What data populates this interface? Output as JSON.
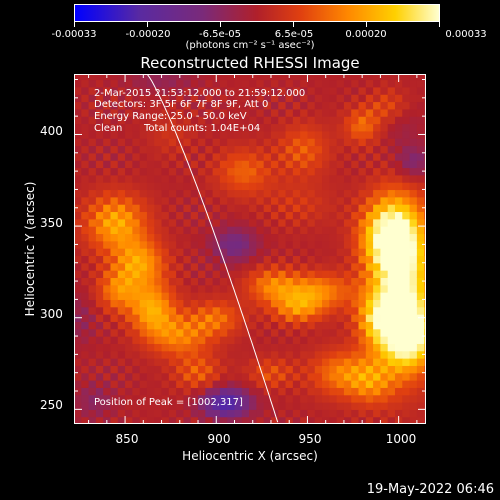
{
  "colorbar": {
    "labels": [
      "-0.00033",
      "-0.00020",
      "-6.5e-05",
      "6.5e-05",
      "0.00020",
      "0.00033"
    ],
    "unit_text": "(photons cm⁻² s⁻¹ asec⁻²)"
  },
  "chart_data": {
    "type": "heatmap",
    "title": "Reconstructed RHESSI Image",
    "xlabel": "Heliocentric X (arcsec)",
    "ylabel": "Heliocentric Y (arcsec)",
    "xlim": [
      822,
      1015
    ],
    "ylim": [
      242,
      433
    ],
    "xticks": [
      "850",
      "900",
      "950",
      "1000"
    ],
    "yticks": [
      "250",
      "300",
      "350",
      "400"
    ],
    "xtick_values": [
      850,
      900,
      950,
      1000
    ],
    "ytick_values": [
      250,
      300,
      350,
      400
    ],
    "zlim": [
      -0.00033,
      0.00033
    ],
    "colormap": [
      "#0000ff",
      "#5a2aa0",
      "#7a2a7a",
      "#b0202a",
      "#e04010",
      "#ff8800",
      "#ffd000",
      "#ffffd0"
    ],
    "annotations": [
      "2-Mar-2015 21:53:12.000 to 21:59:12.000",
      "Detectors: 3F 5F 6F 7F 8F 9F, Att 0",
      "Energy Range: 25.0 - 50.0 keV",
      "Clean",
      "Total counts: 1.04E+04",
      "Position of Peak = [1002,317]"
    ],
    "peak": [
      1002,
      317
    ]
  },
  "footer": {
    "date": "19-May-2022 06:46"
  }
}
